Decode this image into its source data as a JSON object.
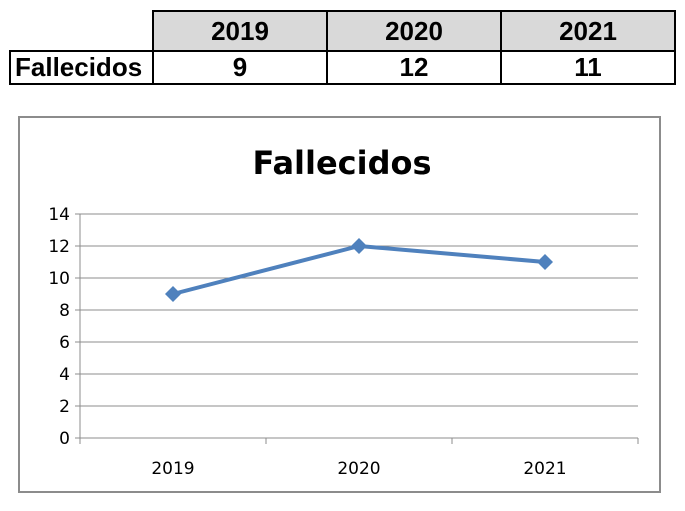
{
  "table": {
    "years": [
      "2019",
      "2020",
      "2021"
    ],
    "row_label": "Fallecidos",
    "values": [
      "9",
      "12",
      "11"
    ],
    "header_fill": "#d9d9d9"
  },
  "chart_data": {
    "type": "line",
    "title": "Fallecidos",
    "categories": [
      "2019",
      "2020",
      "2021"
    ],
    "series": [
      {
        "values": [
          9,
          12,
          11
        ],
        "color": "#4f81bd",
        "marker": "diamond"
      }
    ],
    "ylim": [
      0,
      14
    ],
    "yticks": [
      "0",
      "2",
      "4",
      "6",
      "8",
      "10",
      "12",
      "14"
    ],
    "grid": true,
    "legend": "none"
  }
}
